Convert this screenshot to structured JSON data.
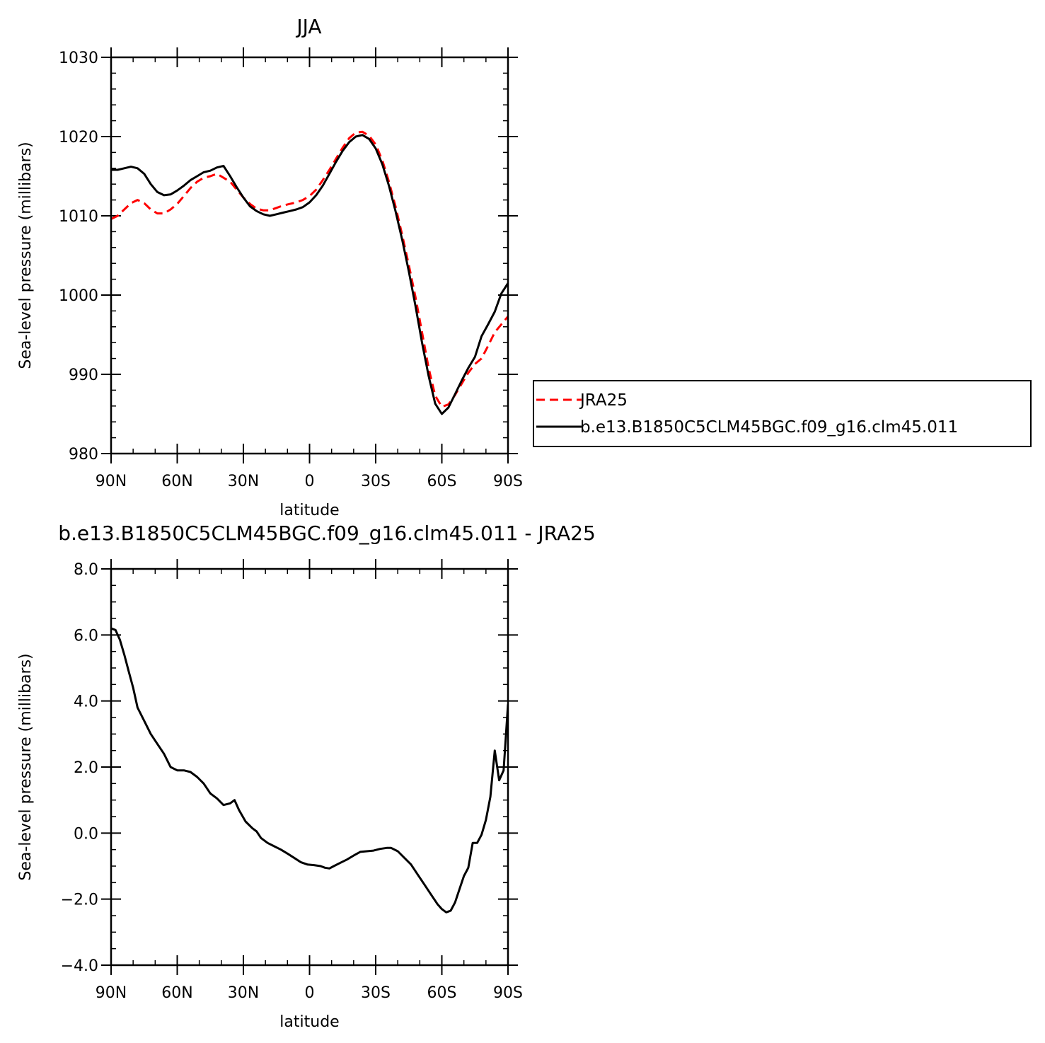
{
  "chart_data": [
    {
      "type": "line",
      "title": "JJA",
      "xlabel": "latitude",
      "ylabel": "Sea-level pressure (millibars)",
      "xlim": [
        90,
        -90
      ],
      "ylim": [
        980,
        1030
      ],
      "xticks": [
        90,
        60,
        30,
        0,
        -30,
        -60,
        -90
      ],
      "xtick_labels": [
        "90N",
        "60N",
        "30N",
        "0",
        "30S",
        "60S",
        "90S"
      ],
      "yticks": [
        980,
        990,
        1000,
        1010,
        1020,
        1030
      ],
      "ytick_labels": [
        "980",
        "990",
        "1000",
        "1010",
        "1020",
        "1030"
      ],
      "legend": {
        "position": "right"
      },
      "series": [
        {
          "name": "JRA25",
          "color": "#ff0000",
          "dash": "dashed",
          "points": [
            [
              90,
              1009.6
            ],
            [
              87,
              1010
            ],
            [
              84,
              1010.8
            ],
            [
              81,
              1011.6
            ],
            [
              78,
              1012
            ],
            [
              75,
              1011.6
            ],
            [
              72,
              1010.8
            ],
            [
              69,
              1010.3
            ],
            [
              66,
              1010.3
            ],
            [
              63,
              1010.8
            ],
            [
              60,
              1011.5
            ],
            [
              57,
              1012.5
            ],
            [
              54,
              1013.5
            ],
            [
              51,
              1014.3
            ],
            [
              48,
              1014.8
            ],
            [
              45,
              1015
            ],
            [
              42,
              1015.3
            ],
            [
              39,
              1014.8
            ],
            [
              36,
              1014.3
            ],
            [
              33,
              1013.3
            ],
            [
              30,
              1012.3
            ],
            [
              27,
              1011.5
            ],
            [
              24,
              1010.9
            ],
            [
              21,
              1010.7
            ],
            [
              18,
              1010.7
            ],
            [
              15,
              1011
            ],
            [
              12,
              1011.3
            ],
            [
              9,
              1011.5
            ],
            [
              6,
              1011.7
            ],
            [
              3,
              1012
            ],
            [
              0,
              1012.5
            ],
            [
              -3,
              1013.3
            ],
            [
              -6,
              1014.5
            ],
            [
              -9,
              1015.8
            ],
            [
              -12,
              1017.2
            ],
            [
              -15,
              1018.6
            ],
            [
              -18,
              1019.8
            ],
            [
              -21,
              1020.5
            ],
            [
              -24,
              1020.6
            ],
            [
              -27,
              1020.1
            ],
            [
              -30,
              1019
            ],
            [
              -33,
              1017
            ],
            [
              -36,
              1014.3
            ],
            [
              -39,
              1011.2
            ],
            [
              -42,
              1007.6
            ],
            [
              -45,
              1003.8
            ],
            [
              -48,
              999.8
            ],
            [
              -51,
              995.3
            ],
            [
              -54,
              990.8
            ],
            [
              -57,
              987.3
            ],
            [
              -60,
              985.9
            ],
            [
              -63,
              986.2
            ],
            [
              -66,
              987.4
            ],
            [
              -69,
              988.8
            ],
            [
              -72,
              990.2
            ],
            [
              -75,
              991.3
            ],
            [
              -78,
              992
            ],
            [
              -81,
              993.6
            ],
            [
              -84,
              995.3
            ],
            [
              -87,
              996.3
            ],
            [
              -90,
              997.3
            ]
          ]
        },
        {
          "name": "b.e13.B1850C5CLM45BGC.f09_g16.clm45.011",
          "color": "#000000",
          "dash": "solid",
          "points": [
            [
              90,
              1015.8
            ],
            [
              87,
              1015.8
            ],
            [
              84,
              1016
            ],
            [
              81,
              1016.2
            ],
            [
              78,
              1016
            ],
            [
              75,
              1015.3
            ],
            [
              72,
              1014
            ],
            [
              69,
              1013
            ],
            [
              66,
              1012.6
            ],
            [
              63,
              1012.7
            ],
            [
              60,
              1013.2
            ],
            [
              57,
              1013.8
            ],
            [
              54,
              1014.5
            ],
            [
              51,
              1015
            ],
            [
              48,
              1015.5
            ],
            [
              45,
              1015.7
            ],
            [
              42,
              1016.1
            ],
            [
              39,
              1016.3
            ],
            [
              36,
              1015
            ],
            [
              33,
              1013.6
            ],
            [
              30,
              1012.3
            ],
            [
              27,
              1011.2
            ],
            [
              24,
              1010.6
            ],
            [
              21,
              1010.2
            ],
            [
              18,
              1010
            ],
            [
              15,
              1010.2
            ],
            [
              12,
              1010.4
            ],
            [
              9,
              1010.6
            ],
            [
              6,
              1010.8
            ],
            [
              3,
              1011.1
            ],
            [
              0,
              1011.7
            ],
            [
              -3,
              1012.6
            ],
            [
              -6,
              1013.8
            ],
            [
              -9,
              1015.3
            ],
            [
              -12,
              1016.8
            ],
            [
              -15,
              1018.2
            ],
            [
              -18,
              1019.3
            ],
            [
              -21,
              1020
            ],
            [
              -24,
              1020.2
            ],
            [
              -27,
              1019.7
            ],
            [
              -30,
              1018.5
            ],
            [
              -33,
              1016.5
            ],
            [
              -36,
              1013.8
            ],
            [
              -39,
              1010.6
            ],
            [
              -42,
              1007
            ],
            [
              -45,
              1003
            ],
            [
              -48,
              998.7
            ],
            [
              -51,
              994
            ],
            [
              -54,
              989.8
            ],
            [
              -57,
              986.3
            ],
            [
              -60,
              985
            ],
            [
              -63,
              985.8
            ],
            [
              -66,
              987.5
            ],
            [
              -69,
              989.2
            ],
            [
              -72,
              990.8
            ],
            [
              -75,
              992.2
            ],
            [
              -78,
              994.8
            ],
            [
              -81,
              996.3
            ],
            [
              -84,
              997.9
            ],
            [
              -87,
              1000.2
            ],
            [
              -90,
              1001.5
            ]
          ]
        }
      ]
    },
    {
      "type": "line",
      "title": "b.e13.B1850C5CLM45BGC.f09_g16.clm45.011 - JRA25",
      "xlabel": "latitude",
      "ylabel": "Sea-level pressure (millibars)",
      "xlim": [
        90,
        -90
      ],
      "ylim": [
        -4,
        8
      ],
      "xticks": [
        90,
        60,
        30,
        0,
        -30,
        -60,
        -90
      ],
      "xtick_labels": [
        "90N",
        "60N",
        "30N",
        "0",
        "30S",
        "60S",
        "90S"
      ],
      "yticks": [
        -4,
        -2,
        0,
        2,
        4,
        6,
        8
      ],
      "ytick_labels": [
        "−4.0",
        "−2.0",
        "0.0",
        "2.0",
        "4.0",
        "6.0",
        "8.0"
      ],
      "series": [
        {
          "color": "#000000",
          "dash": "solid",
          "points": [
            [
              90,
              6.2
            ],
            [
              88,
              6.15
            ],
            [
              86,
              5.85
            ],
            [
              84,
              5.4
            ],
            [
              82,
              4.9
            ],
            [
              80,
              4.4
            ],
            [
              78,
              3.8
            ],
            [
              75,
              3.4
            ],
            [
              72,
              3
            ],
            [
              69,
              2.7
            ],
            [
              66,
              2.4
            ],
            [
              63,
              2
            ],
            [
              60,
              1.9
            ],
            [
              57,
              1.9
            ],
            [
              54,
              1.85
            ],
            [
              51,
              1.7
            ],
            [
              48,
              1.5
            ],
            [
              45,
              1.2
            ],
            [
              42,
              1.05
            ],
            [
              39,
              0.85
            ],
            [
              36,
              0.9
            ],
            [
              34,
              1.0
            ],
            [
              32,
              0.7
            ],
            [
              29,
              0.35
            ],
            [
              26,
              0.15
            ],
            [
              24,
              0.05
            ],
            [
              22,
              -0.15
            ],
            [
              19,
              -0.3
            ],
            [
              16,
              -0.4
            ],
            [
              13,
              -0.5
            ],
            [
              10,
              -0.62
            ],
            [
              7,
              -0.75
            ],
            [
              4,
              -0.88
            ],
            [
              1,
              -0.95
            ],
            [
              -2,
              -0.97
            ],
            [
              -5,
              -1.0
            ],
            [
              -7,
              -1.05
            ],
            [
              -9,
              -1.07
            ],
            [
              -11,
              -1.0
            ],
            [
              -14,
              -0.9
            ],
            [
              -17,
              -0.8
            ],
            [
              -20,
              -0.68
            ],
            [
              -23,
              -0.57
            ],
            [
              -26,
              -0.55
            ],
            [
              -29,
              -0.53
            ],
            [
              -32,
              -0.48
            ],
            [
              -35,
              -0.45
            ],
            [
              -37,
              -0.45
            ],
            [
              -40,
              -0.55
            ],
            [
              -43,
              -0.75
            ],
            [
              -46,
              -0.95
            ],
            [
              -49,
              -1.25
            ],
            [
              -52,
              -1.55
            ],
            [
              -55,
              -1.85
            ],
            [
              -58,
              -2.15
            ],
            [
              -60,
              -2.3
            ],
            [
              -62,
              -2.4
            ],
            [
              -64,
              -2.35
            ],
            [
              -66,
              -2.1
            ],
            [
              -68,
              -1.7
            ],
            [
              -70,
              -1.3
            ],
            [
              -72,
              -1.05
            ],
            [
              -74,
              -0.3
            ],
            [
              -76,
              -0.3
            ],
            [
              -78,
              -0.05
            ],
            [
              -80,
              0.4
            ],
            [
              -82,
              1.1
            ],
            [
              -84,
              2.5
            ],
            [
              -86,
              1.6
            ],
            [
              -88,
              1.9
            ],
            [
              -90,
              3.9
            ]
          ]
        }
      ]
    }
  ]
}
